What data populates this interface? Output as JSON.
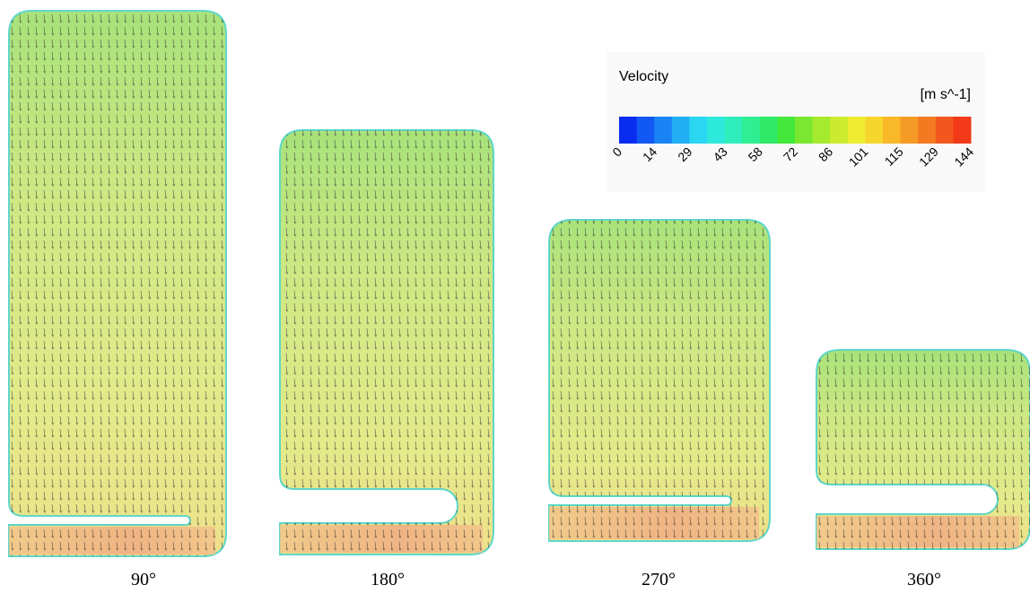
{
  "legend": {
    "title": "Velocity",
    "unit": "[m s^-1]",
    "ticks": [
      "0",
      "14",
      "29",
      "43",
      "58",
      "72",
      "86",
      "101",
      "115",
      "129",
      "144"
    ]
  },
  "panels": [
    {
      "label": "90°"
    },
    {
      "label": "180°"
    },
    {
      "label": "270°"
    },
    {
      "label": "360°"
    }
  ]
}
